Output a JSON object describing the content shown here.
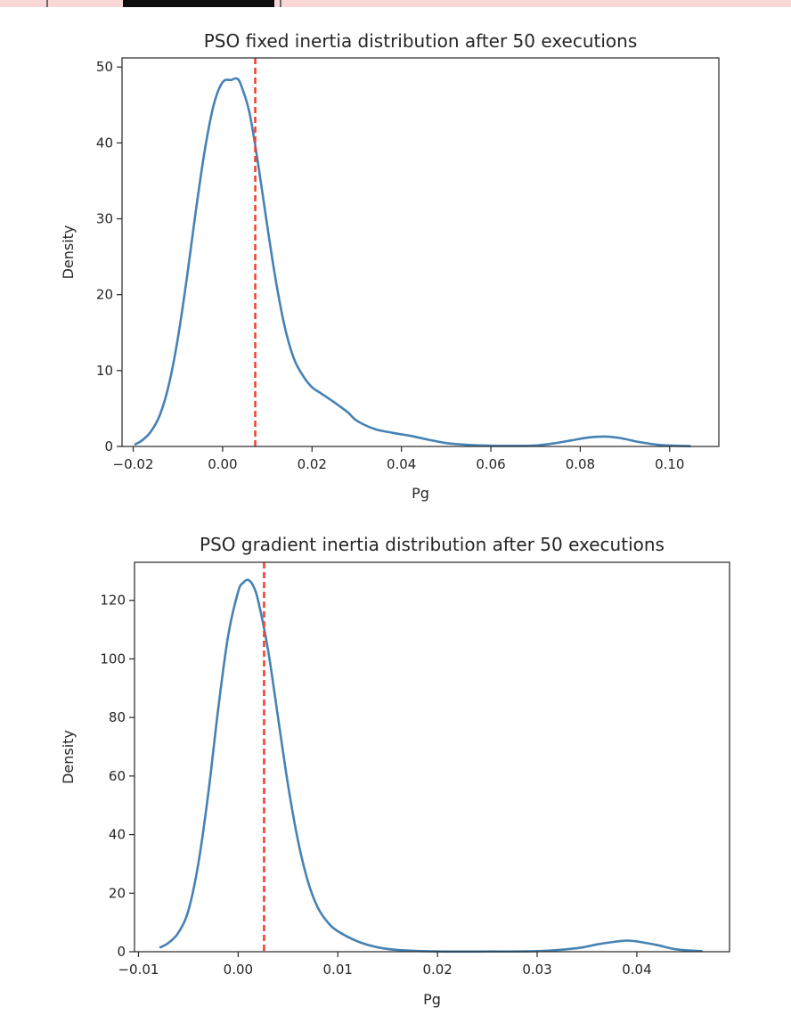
{
  "colors": {
    "kde_line": "#4682b4",
    "marker_line": "#f04335",
    "axes": "#262626"
  },
  "chart_data": [
    {
      "type": "line",
      "title": "PSO fixed inertia distribution after 50 executions",
      "xlabel": "Pg",
      "ylabel": "Density",
      "xlim": [
        -0.0225,
        0.111
      ],
      "ylim": [
        0,
        51.2
      ],
      "xticks": [
        -0.02,
        0.0,
        0.02,
        0.04,
        0.06,
        0.08,
        0.1
      ],
      "xtick_labels": [
        "−0.02",
        "0.00",
        "0.02",
        "0.04",
        "0.06",
        "0.08",
        "0.10"
      ],
      "yticks": [
        0,
        10,
        20,
        30,
        40,
        50
      ],
      "ytick_labels": [
        "0",
        "10",
        "20",
        "30",
        "40",
        "50"
      ],
      "grid": false,
      "reference_line": {
        "x": 0.0073,
        "style": "dashed"
      },
      "series": [
        {
          "x": [
            -0.0195,
            -0.018,
            -0.016,
            -0.014,
            -0.012,
            -0.01,
            -0.008,
            -0.006,
            -0.004,
            -0.002,
            0.0,
            0.002,
            0.003,
            0.004,
            0.006,
            0.008,
            0.01,
            0.012,
            0.014,
            0.016,
            0.018,
            0.02,
            0.022,
            0.025,
            0.028,
            0.03,
            0.034,
            0.038,
            0.042,
            0.046,
            0.05,
            0.055,
            0.06,
            0.065,
            0.07,
            0.074,
            0.078,
            0.082,
            0.0855,
            0.089,
            0.093,
            0.097,
            0.1,
            0.1045
          ],
          "values": [
            0.3,
            0.8,
            2.0,
            4.2,
            8.2,
            14.3,
            22.2,
            31.0,
            39.0,
            45.0,
            48.0,
            48.3,
            48.5,
            47.8,
            44.0,
            37.0,
            29.0,
            21.5,
            15.5,
            11.5,
            9.3,
            7.8,
            7.0,
            5.8,
            4.5,
            3.4,
            2.3,
            1.8,
            1.4,
            0.9,
            0.45,
            0.2,
            0.1,
            0.08,
            0.12,
            0.4,
            0.8,
            1.2,
            1.3,
            1.1,
            0.6,
            0.25,
            0.12,
            0.05
          ]
        }
      ]
    },
    {
      "type": "line",
      "title": "PSO gradient inertia distribution after 50 executions",
      "xlabel": "Pg",
      "ylabel": "Density",
      "xlim": [
        -0.0104,
        0.0493
      ],
      "ylim": [
        0,
        133
      ],
      "xticks": [
        -0.01,
        0.0,
        0.01,
        0.02,
        0.03,
        0.04
      ],
      "xtick_labels": [
        "−0.01",
        "0.00",
        "0.01",
        "0.02",
        "0.03",
        "0.04"
      ],
      "yticks": [
        0,
        20,
        40,
        60,
        80,
        100,
        120
      ],
      "ytick_labels": [
        "0",
        "20",
        "40",
        "60",
        "80",
        "100",
        "120"
      ],
      "grid": false,
      "reference_line": {
        "x": 0.0026,
        "style": "dashed"
      },
      "series": [
        {
          "x": [
            -0.0078,
            -0.007,
            -0.006,
            -0.005,
            -0.004,
            -0.003,
            -0.002,
            -0.001,
            0.0,
            0.0005,
            0.001,
            0.0015,
            0.002,
            0.003,
            0.004,
            0.005,
            0.006,
            0.007,
            0.008,
            0.009,
            0.01,
            0.012,
            0.014,
            0.016,
            0.02,
            0.025,
            0.03,
            0.034,
            0.036,
            0.038,
            0.039,
            0.04,
            0.042,
            0.044,
            0.0465
          ],
          "values": [
            1.5,
            3.0,
            6.5,
            14.0,
            30.0,
            54.0,
            83.0,
            108.0,
            123.0,
            126.0,
            127.0,
            125.0,
            120.0,
            103.0,
            80.0,
            57.0,
            38.0,
            24.0,
            15.0,
            10.0,
            7.0,
            3.5,
            1.5,
            0.6,
            0.1,
            0.08,
            0.2,
            1.2,
            2.5,
            3.5,
            3.8,
            3.5,
            2.3,
            0.8,
            0.2
          ]
        }
      ]
    }
  ]
}
